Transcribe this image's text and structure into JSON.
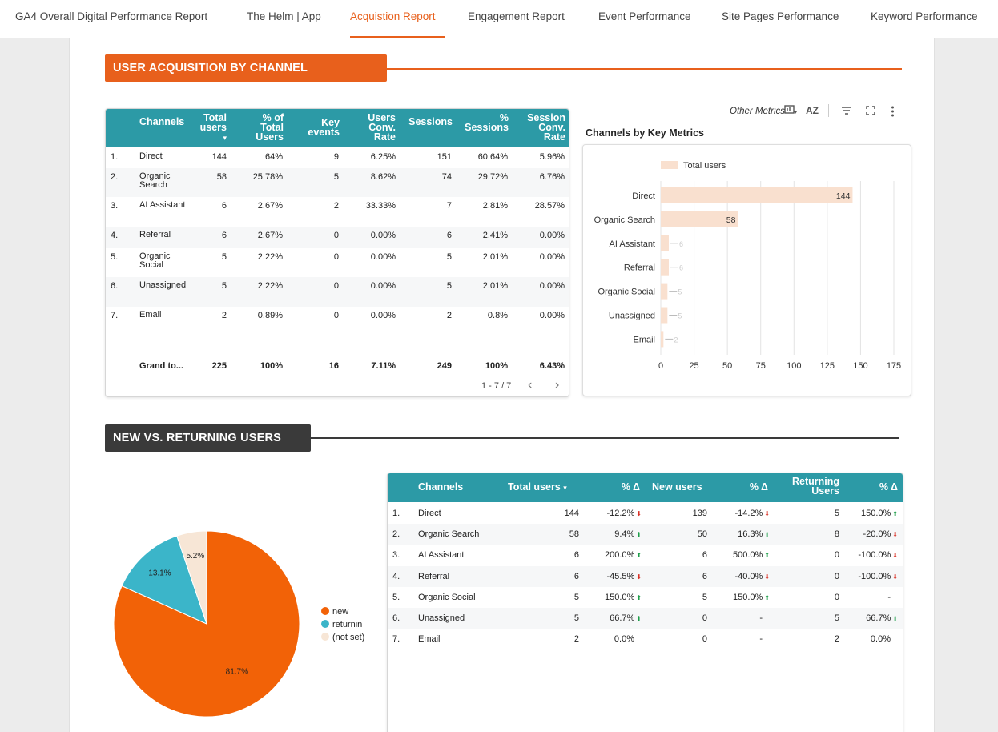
{
  "nav": {
    "tabs": [
      {
        "label": "GA4 Overall Digital Performance Report"
      },
      {
        "label": "The Helm | App"
      },
      {
        "label": "Acquistion Report"
      },
      {
        "label": "Engagement Report"
      },
      {
        "label": "Event Performance"
      },
      {
        "label": "Site Pages Performance"
      },
      {
        "label": "Keyword Performance"
      }
    ],
    "active_index": 2
  },
  "colors": {
    "accent": "#e8601c",
    "teal": "#2c9aa6",
    "dark": "#3a3a3a",
    "bar": "#f9e0cf"
  },
  "section1": {
    "title": "USER ACQUISITION BY CHANNEL"
  },
  "section2": {
    "title": "NEW VS. RETURNING USERS"
  },
  "acq_table": {
    "headers": {
      "channel": "Channels",
      "total_users": "Total users",
      "sort_icon": "▾",
      "pct_total": "% of Total Users",
      "key_events": "Key events",
      "conv_rate": "Users Conv. Rate",
      "sessions": "Sessions",
      "pct_sessions": "% Sessions",
      "session_conv": "Session Conv. Rate"
    },
    "rows": [
      {
        "n": "1.",
        "channel": "Direct",
        "users": "144",
        "pct": "64%",
        "key": "9",
        "conv": "6.25%",
        "sess": "151",
        "psess": "60.64%",
        "sconv": "5.96%"
      },
      {
        "n": "2.",
        "channel": "Organic Search",
        "users": "58",
        "pct": "25.78%",
        "key": "5",
        "conv": "8.62%",
        "sess": "74",
        "psess": "29.72%",
        "sconv": "6.76%"
      },
      {
        "n": "3.",
        "channel": "AI Assistant",
        "users": "6",
        "pct": "2.67%",
        "key": "2",
        "conv": "33.33%",
        "sess": "7",
        "psess": "2.81%",
        "sconv": "28.57%"
      },
      {
        "n": "4.",
        "channel": "Referral",
        "users": "6",
        "pct": "2.67%",
        "key": "0",
        "conv": "0.00%",
        "sess": "6",
        "psess": "2.41%",
        "sconv": "0.00%"
      },
      {
        "n": "5.",
        "channel": "Organic Social",
        "users": "5",
        "pct": "2.22%",
        "key": "0",
        "conv": "0.00%",
        "sess": "5",
        "psess": "2.01%",
        "sconv": "0.00%"
      },
      {
        "n": "6.",
        "channel": "Unassigned",
        "users": "5",
        "pct": "2.22%",
        "key": "0",
        "conv": "0.00%",
        "sess": "5",
        "psess": "2.01%",
        "sconv": "0.00%"
      },
      {
        "n": "7.",
        "channel": "Email",
        "users": "2",
        "pct": "0.89%",
        "key": "0",
        "conv": "0.00%",
        "sess": "2",
        "psess": "0.8%",
        "sconv": "0.00%"
      }
    ],
    "total": {
      "label": "Grand to...",
      "users": "225",
      "pct": "100%",
      "key": "16",
      "conv": "7.11%",
      "sess": "249",
      "psess": "100%",
      "sconv": "6.43%"
    },
    "pagination": {
      "label": "1 - 7 / 7",
      "prev": "‹",
      "next": "›"
    }
  },
  "chart_toolbar": {
    "other_metrics": "Other Metrics",
    "az": "AZ",
    "filter_icon": "filter-icon",
    "fullscreen_icon": "fullscreen-icon",
    "more_icon": "more-icon"
  },
  "chart_data": [
    {
      "type": "bar",
      "orientation": "horizontal",
      "title": "Channels by Key Metrics",
      "categories": [
        "Direct",
        "Organic Search",
        "AI Assistant",
        "Referral",
        "Organic Social",
        "Unassigned",
        "Email"
      ],
      "series": [
        {
          "name": "Total users",
          "values": [
            144,
            58,
            6,
            6,
            5,
            5,
            2
          ]
        }
      ],
      "xlim": [
        0,
        175
      ],
      "xticks": [
        0,
        25,
        50,
        75,
        100,
        125,
        150,
        175
      ],
      "legend": "top-left",
      "grid": true
    },
    {
      "type": "pie",
      "slices": [
        {
          "label": "new",
          "value": 81.7,
          "display": "81.7%",
          "color": "#f26207"
        },
        {
          "label": "returning",
          "value": 13.1,
          "display": "13.1%",
          "color": "#3bb5c9"
        },
        {
          "label": "(not set)",
          "value": 5.2,
          "display": "5.2%",
          "color": "#f7e6d6"
        }
      ],
      "legend_labels": [
        "new",
        "returnin",
        "(not set)"
      ],
      "legend": "right"
    }
  ],
  "nvr_table": {
    "headers": {
      "channel": "Channels",
      "total_users": "Total users",
      "sort_icon": "▾",
      "delta1": "% Δ",
      "new_users": "New users",
      "delta2": "% Δ",
      "returning": "Returning Users",
      "delta3": "% Δ"
    },
    "rows": [
      {
        "n": "1.",
        "channel": "Direct",
        "total": "144",
        "d1": "-12.2%",
        "d1dir": "down",
        "new": "139",
        "d2": "-14.2%",
        "d2dir": "down",
        "ret": "5",
        "d3": "150.0%",
        "d3dir": "up"
      },
      {
        "n": "2.",
        "channel": "Organic Search",
        "total": "58",
        "d1": "9.4%",
        "d1dir": "up",
        "new": "50",
        "d2": "16.3%",
        "d2dir": "up",
        "ret": "8",
        "d3": "-20.0%",
        "d3dir": "down"
      },
      {
        "n": "3.",
        "channel": "AI Assistant",
        "total": "6",
        "d1": "200.0%",
        "d1dir": "up",
        "new": "6",
        "d2": "500.0%",
        "d2dir": "up",
        "ret": "0",
        "d3": "-100.0%",
        "d3dir": "down"
      },
      {
        "n": "4.",
        "channel": "Referral",
        "total": "6",
        "d1": "-45.5%",
        "d1dir": "down",
        "new": "6",
        "d2": "-40.0%",
        "d2dir": "down",
        "ret": "0",
        "d3": "-100.0%",
        "d3dir": "down"
      },
      {
        "n": "5.",
        "channel": "Organic Social",
        "total": "5",
        "d1": "150.0%",
        "d1dir": "up",
        "new": "5",
        "d2": "150.0%",
        "d2dir": "up",
        "ret": "0",
        "d3": "-",
        "d3dir": ""
      },
      {
        "n": "6.",
        "channel": "Unassigned",
        "total": "5",
        "d1": "66.7%",
        "d1dir": "up",
        "new": "0",
        "d2": "-",
        "d2dir": "",
        "ret": "5",
        "d3": "66.7%",
        "d3dir": "up"
      },
      {
        "n": "7.",
        "channel": "Email",
        "total": "2",
        "d1": "0.0%",
        "d1dir": "",
        "new": "0",
        "d2": "-",
        "d2dir": "",
        "ret": "2",
        "d3": "0.0%",
        "d3dir": ""
      }
    ]
  }
}
